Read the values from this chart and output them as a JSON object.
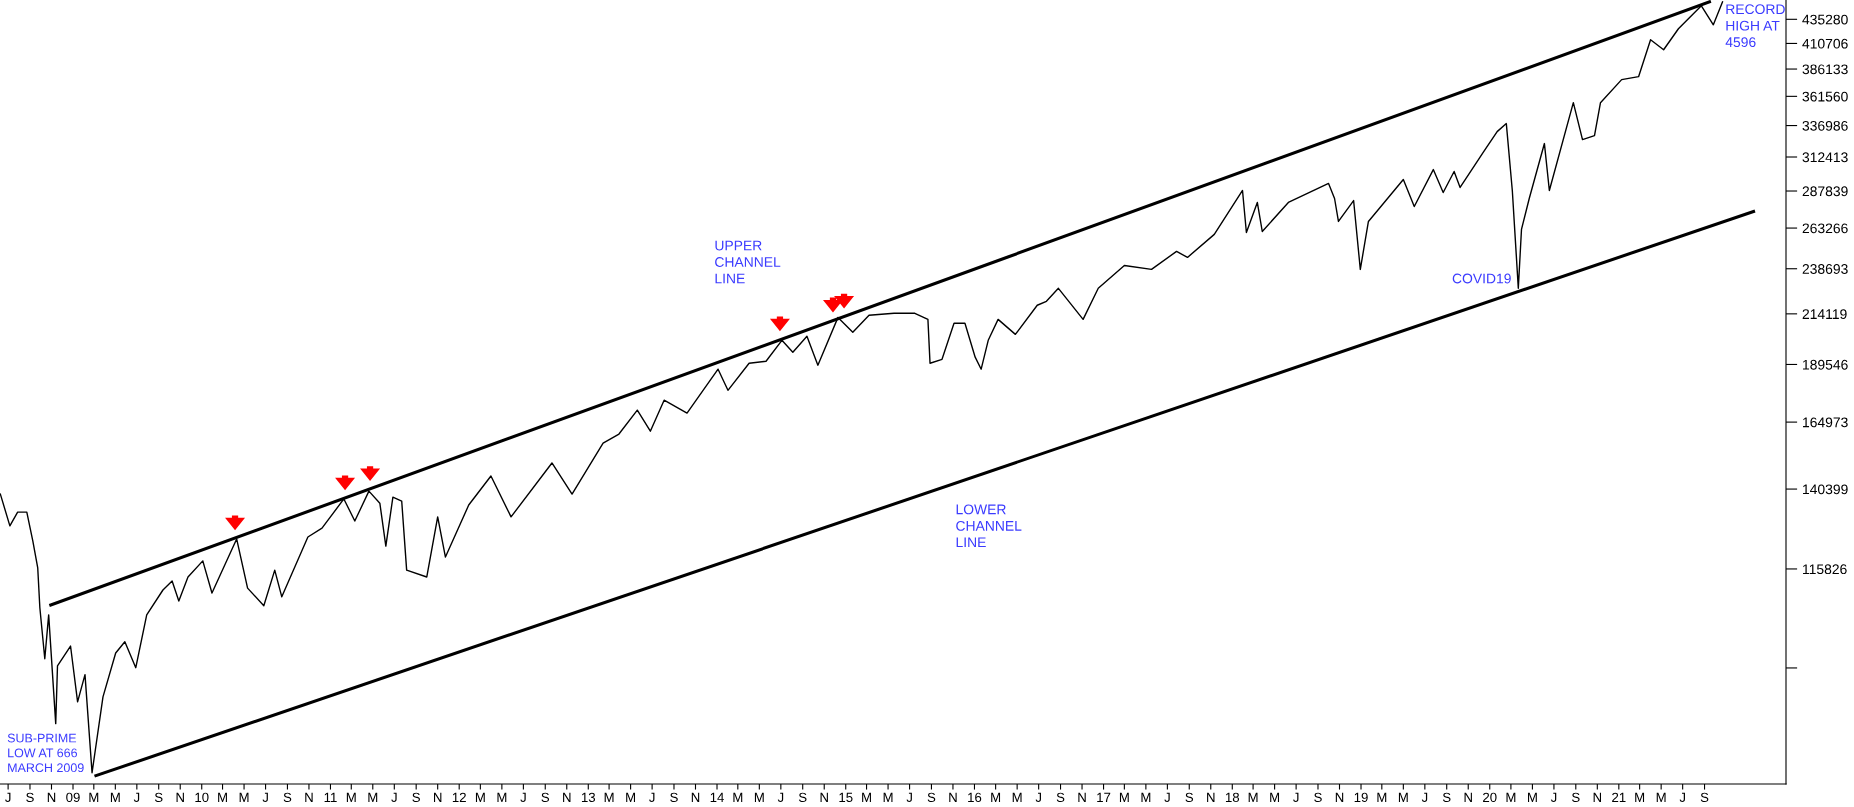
{
  "chart_data": {
    "type": "line",
    "xlim": [
      "2008-06-08",
      "2022-04-20"
    ],
    "ylim": [
      69000,
      456000
    ],
    "log": "y",
    "yticks": [
      435280,
      410706,
      386133,
      361560,
      336986,
      312413,
      287839,
      263266,
      238693,
      214119,
      189546,
      164973,
      140399,
      115826,
      {
        "value": 91253,
        "label": null
      }
    ],
    "xticks": [
      {
        "value": "2008-07-01",
        "label": "J"
      },
      {
        "value": "2008-09-01",
        "label": "S"
      },
      {
        "value": "2008-11-01",
        "label": "N"
      },
      {
        "value": "2009-01-01",
        "label": "09"
      },
      {
        "value": "2009-03-01",
        "label": "M"
      },
      {
        "value": "2009-05-01",
        "label": "M"
      },
      {
        "value": "2009-07-01",
        "label": "J"
      },
      {
        "value": "2009-09-01",
        "label": "S"
      },
      {
        "value": "2009-11-01",
        "label": "N"
      },
      {
        "value": "2010-01-01",
        "label": "10"
      },
      {
        "value": "2010-03-01",
        "label": "M"
      },
      {
        "value": "2010-05-01",
        "label": "M"
      },
      {
        "value": "2010-07-01",
        "label": "J"
      },
      {
        "value": "2010-09-01",
        "label": "S"
      },
      {
        "value": "2010-11-01",
        "label": "N"
      },
      {
        "value": "2011-01-01",
        "label": "11"
      },
      {
        "value": "2011-03-01",
        "label": "M"
      },
      {
        "value": "2011-05-01",
        "label": "M"
      },
      {
        "value": "2011-07-01",
        "label": "J"
      },
      {
        "value": "2011-09-01",
        "label": "S"
      },
      {
        "value": "2011-11-01",
        "label": "N"
      },
      {
        "value": "2012-01-01",
        "label": "12"
      },
      {
        "value": "2012-03-01",
        "label": "M"
      },
      {
        "value": "2012-05-01",
        "label": "M"
      },
      {
        "value": "2012-07-01",
        "label": "J"
      },
      {
        "value": "2012-09-01",
        "label": "S"
      },
      {
        "value": "2012-11-01",
        "label": "N"
      },
      {
        "value": "2013-01-01",
        "label": "13"
      },
      {
        "value": "2013-03-01",
        "label": "M"
      },
      {
        "value": "2013-05-01",
        "label": "M"
      },
      {
        "value": "2013-07-01",
        "label": "J"
      },
      {
        "value": "2013-09-01",
        "label": "S"
      },
      {
        "value": "2013-11-01",
        "label": "N"
      },
      {
        "value": "2014-01-01",
        "label": "14"
      },
      {
        "value": "2014-03-01",
        "label": "M"
      },
      {
        "value": "2014-05-01",
        "label": "M"
      },
      {
        "value": "2014-07-01",
        "label": "J"
      },
      {
        "value": "2014-09-01",
        "label": "S"
      },
      {
        "value": "2014-11-01",
        "label": "N"
      },
      {
        "value": "2015-01-01",
        "label": "15"
      },
      {
        "value": "2015-03-01",
        "label": "M"
      },
      {
        "value": "2015-05-01",
        "label": "M"
      },
      {
        "value": "2015-07-01",
        "label": "J"
      },
      {
        "value": "2015-09-01",
        "label": "S"
      },
      {
        "value": "2015-11-01",
        "label": "N"
      },
      {
        "value": "2016-01-01",
        "label": "16"
      },
      {
        "value": "2016-03-01",
        "label": "M"
      },
      {
        "value": "2016-05-01",
        "label": "M"
      },
      {
        "value": "2016-07-01",
        "label": "J"
      },
      {
        "value": "2016-09-01",
        "label": "S"
      },
      {
        "value": "2016-11-01",
        "label": "N"
      },
      {
        "value": "2017-01-01",
        "label": "17"
      },
      {
        "value": "2017-03-01",
        "label": "M"
      },
      {
        "value": "2017-05-01",
        "label": "M"
      },
      {
        "value": "2017-07-01",
        "label": "J"
      },
      {
        "value": "2017-09-01",
        "label": "S"
      },
      {
        "value": "2017-11-01",
        "label": "N"
      },
      {
        "value": "2018-01-01",
        "label": "18"
      },
      {
        "value": "2018-03-01",
        "label": "M"
      },
      {
        "value": "2018-05-01",
        "label": "M"
      },
      {
        "value": "2018-07-01",
        "label": "J"
      },
      {
        "value": "2018-09-01",
        "label": "S"
      },
      {
        "value": "2018-11-01",
        "label": "N"
      },
      {
        "value": "2019-01-01",
        "label": "19"
      },
      {
        "value": "2019-03-01",
        "label": "M"
      },
      {
        "value": "2019-05-01",
        "label": "M"
      },
      {
        "value": "2019-07-01",
        "label": "J"
      },
      {
        "value": "2019-09-01",
        "label": "S"
      },
      {
        "value": "2019-11-01",
        "label": "N"
      },
      {
        "value": "2020-01-01",
        "label": "20"
      },
      {
        "value": "2020-03-01",
        "label": "M"
      },
      {
        "value": "2020-05-01",
        "label": "M"
      },
      {
        "value": "2020-07-01",
        "label": "J"
      },
      {
        "value": "2020-09-01",
        "label": "S"
      },
      {
        "value": "2020-11-01",
        "label": "N"
      },
      {
        "value": "2021-01-01",
        "label": "21"
      },
      {
        "value": "2021-03-01",
        "label": "M"
      },
      {
        "value": "2021-05-01",
        "label": "M"
      },
      {
        "value": "2021-07-01",
        "label": "J"
      },
      {
        "value": "2021-09-01",
        "label": "S"
      }
    ],
    "series": [
      {
        "color": "#000000",
        "x": [
          "2008-06-09",
          "2008-07-06",
          "2008-07-28",
          "2008-08-23",
          "2008-09-09",
          "2008-09-23",
          "2008-09-29",
          "2008-10-13",
          "2008-10-24",
          "2008-11-13",
          "2008-11-18",
          "2008-12-25",
          "2009-01-14",
          "2009-02-04",
          "2009-02-24",
          "2009-03-27",
          "2009-05-02",
          "2009-05-28",
          "2009-06-28",
          "2009-07-29",
          "2009-09-13",
          "2009-10-09",
          "2009-10-28",
          "2009-11-23",
          "2010-01-04",
          "2010-01-30",
          "2010-04-10",
          "2010-05-11",
          "2010-06-26",
          "2010-07-27",
          "2010-08-16",
          "2010-10-29",
          "2010-12-08",
          "2011-02-08",
          "2011-03-11",
          "2011-04-20",
          "2011-05-21",
          "2011-06-07",
          "2011-06-27",
          "2011-07-22",
          "2011-08-05",
          "2011-10-01",
          "2011-11-01",
          "2011-11-23",
          "2012-01-28",
          "2012-03-31",
          "2012-05-27",
          "2012-09-20",
          "2012-11-16",
          "2013-02-12",
          "2013-03-29",
          "2013-05-20",
          "2013-06-26",
          "2013-08-04",
          "2013-10-08",
          "2014-01-04",
          "2014-02-01",
          "2014-04-02",
          "2014-05-20",
          "2014-07-04",
          "2014-08-04",
          "2014-09-13",
          "2014-10-14",
          "2014-12-10",
          "2015-01-21",
          "2015-03-08",
          "2015-05-18",
          "2015-07-16",
          "2015-08-22",
          "2015-08-28",
          "2015-10-01",
          "2015-11-04",
          "2015-12-05",
          "2016-01-03",
          "2016-01-20",
          "2016-02-09",
          "2016-03-08",
          "2016-04-26",
          "2016-06-27",
          "2016-07-23",
          "2016-08-26",
          "2016-11-04",
          "2016-12-17",
          "2017-03-01",
          "2017-05-17",
          "2017-07-27",
          "2017-08-27",
          "2017-11-11",
          "2018-01-30",
          "2018-02-10",
          "2018-03-13",
          "2018-03-27",
          "2018-06-09",
          "2018-10-01",
          "2018-10-18",
          "2018-10-29",
          "2018-12-11",
          "2018-12-30",
          "2019-01-22",
          "2019-05-01",
          "2019-06-01",
          "2019-07-25",
          "2019-08-22",
          "2019-09-22",
          "2019-10-09",
          "2019-12-13",
          "2020-01-22",
          "2020-02-17",
          "2020-03-05",
          "2020-03-22",
          "2020-03-31",
          "2020-04-22",
          "2020-06-04",
          "2020-06-18",
          "2020-08-25",
          "2020-09-20",
          "2020-10-24",
          "2020-11-10",
          "2021-01-09",
          "2021-02-26",
          "2021-04-01",
          "2021-05-08",
          "2021-06-19",
          "2021-08-23",
          "2021-09-26",
          "2021-10-22"
        ],
        "values": [
          138700,
          128500,
          132800,
          132800,
          123900,
          116100,
          105500,
          93300,
          103700,
          79800,
          91700,
          96200,
          84100,
          89800,
          70900,
          85100,
          94600,
          97200,
          91300,
          103700,
          110100,
          112500,
          107200,
          113600,
          118100,
          109300,
          124500,
          110600,
          106000,
          115500,
          108300,
          125100,
          127800,
          137100,
          130000,
          139700,
          135700,
          122400,
          137700,
          136400,
          115500,
          113600,
          131300,
          119200,
          135100,
          144900,
          131300,
          149500,
          138700,
          156800,
          160300,
          169800,
          161400,
          173900,
          168600,
          187400,
          178100,
          190100,
          191000,
          200900,
          195200,
          202900,
          189200,
          212300,
          204800,
          213400,
          214400,
          214400,
          211300,
          190100,
          191900,
          209300,
          209300,
          192900,
          187400,
          200900,
          211300,
          203800,
          218600,
          220700,
          227700,
          211300,
          227700,
          240600,
          238300,
          248900,
          245300,
          259300,
          288200,
          260500,
          280000,
          261100,
          280000,
          293100,
          282700,
          267500,
          281300,
          238300,
          267500,
          295900,
          277300,
          303100,
          286800,
          301700,
          290300,
          315800,
          332100,
          338600,
          288200,
          227700,
          262400,
          282700,
          322700,
          288200,
          356100,
          325800,
          328900,
          356100,
          376400,
          379100,
          414400,
          404500,
          425500,
          449700,
          429600,
          454000
        ]
      },
      {
        "color": "#000000",
        "x": [
          "2008-10-30",
          "2021-09-15"
        ],
        "values": [
          106200,
          454000
        ]
      },
      {
        "color": "#000000",
        "x": [
          "2009-03-07",
          "2022-01-18"
        ],
        "values": [
          70400,
          274000
        ]
      }
    ],
    "annotations": [
      "SUB-PRIME\nLOW AT 666\nMARCH 2009",
      "UPPER\nCHANNEL\nLINE",
      "LOWER\nCHANNEL\nLINE",
      "COVID19",
      "RECORD\nHIGH AT\n4596"
    ]
  }
}
